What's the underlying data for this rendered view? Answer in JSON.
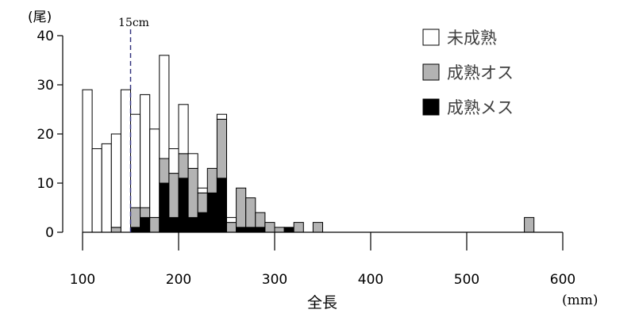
{
  "chart_data": {
    "type": "bar",
    "stacked": true,
    "ylabel": "(尾)",
    "xlabel": "全長",
    "xunit": "(mm)",
    "xlim": [
      100,
      600
    ],
    "ylim": [
      0,
      40
    ],
    "xticks": [
      "100",
      "200",
      "300",
      "400",
      "500",
      "600"
    ],
    "yticks": [
      "0",
      "10",
      "20",
      "30",
      "40"
    ],
    "bin_width": 10,
    "x": [
      105,
      115,
      125,
      135,
      145,
      155,
      165,
      175,
      185,
      195,
      205,
      215,
      225,
      235,
      245,
      255,
      265,
      275,
      285,
      295,
      305,
      315,
      325,
      345,
      565
    ],
    "series": [
      {
        "name": "成熟メス",
        "color": "#000000",
        "values": [
          0,
          0,
          0,
          0,
          0,
          1,
          3,
          0,
          10,
          3,
          11,
          3,
          4,
          8,
          11,
          0,
          1,
          1,
          1,
          0,
          0,
          1,
          0,
          0,
          0
        ]
      },
      {
        "name": "成熟オス",
        "color": "#b3b3b3",
        "values": [
          0,
          0,
          0,
          1,
          0,
          4,
          2,
          3,
          5,
          9,
          5,
          10,
          4,
          5,
          12,
          2,
          8,
          6,
          3,
          2,
          1,
          0,
          2,
          2,
          3
        ]
      },
      {
        "name": "未成熟",
        "color": "#ffffff",
        "values": [
          29,
          17,
          18,
          19,
          29,
          19,
          23,
          18,
          21,
          5,
          10,
          3,
          1,
          0,
          1,
          1,
          0,
          0,
          0,
          0,
          0,
          0,
          0,
          0,
          0
        ]
      }
    ],
    "annotation": {
      "label": "15cm",
      "x": 150
    },
    "legend_position": "top-right",
    "grid": false
  }
}
